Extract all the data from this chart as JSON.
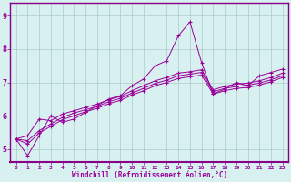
{
  "title": "",
  "xlabel": "Windchill (Refroidissement éolien,°C)",
  "ylabel": "",
  "bg_color": "#cce8e8",
  "plot_bg_color": "#d8f0f0",
  "line_color": "#990099",
  "grid_color": "#aacccc",
  "spine_color": "#880088",
  "xlim": [
    -0.5,
    23.5
  ],
  "ylim": [
    4.6,
    9.4
  ],
  "yticks": [
    5,
    6,
    7,
    8,
    9
  ],
  "xticks": [
    0,
    1,
    2,
    3,
    4,
    5,
    6,
    7,
    8,
    9,
    10,
    11,
    12,
    13,
    14,
    15,
    16,
    17,
    18,
    19,
    20,
    21,
    22,
    23
  ],
  "series": [
    [
      5.3,
      4.8,
      5.4,
      6.0,
      5.8,
      5.9,
      6.1,
      6.3,
      6.5,
      6.6,
      6.9,
      7.1,
      7.5,
      7.65,
      8.4,
      8.82,
      7.6,
      6.65,
      6.8,
      7.0,
      6.9,
      7.2,
      7.3,
      7.4
    ],
    [
      5.3,
      5.4,
      5.9,
      5.85,
      6.05,
      6.15,
      6.25,
      6.35,
      6.48,
      6.58,
      6.75,
      6.9,
      7.05,
      7.15,
      7.28,
      7.32,
      7.38,
      6.78,
      6.88,
      6.95,
      6.98,
      7.05,
      7.15,
      7.28
    ],
    [
      5.3,
      5.25,
      5.55,
      5.75,
      5.95,
      6.08,
      6.18,
      6.28,
      6.42,
      6.52,
      6.68,
      6.82,
      6.97,
      7.07,
      7.2,
      7.25,
      7.3,
      6.72,
      6.82,
      6.88,
      6.92,
      6.98,
      7.08,
      7.2
    ],
    [
      5.3,
      5.15,
      5.48,
      5.68,
      5.88,
      6.0,
      6.12,
      6.22,
      6.36,
      6.46,
      6.62,
      6.75,
      6.9,
      7.0,
      7.12,
      7.17,
      7.22,
      6.65,
      6.75,
      6.82,
      6.85,
      6.92,
      7.02,
      7.15
    ]
  ]
}
